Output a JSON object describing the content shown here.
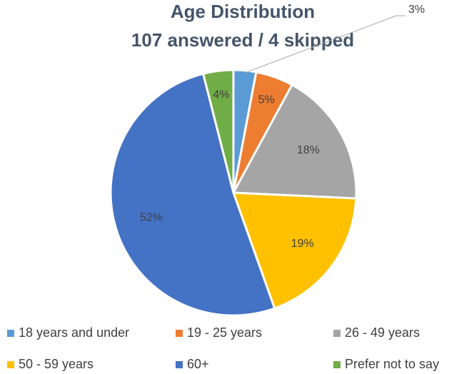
{
  "chart_data": {
    "type": "pie",
    "title": "Age Distribution",
    "subtitle": "107 answered / 4 skipped",
    "categories": [
      "18 years and under",
      "19 - 25 years",
      "26 - 49 years",
      "50 - 59 years",
      "60+",
      "Prefer not to say"
    ],
    "values": [
      3,
      5,
      18,
      19,
      52,
      4
    ],
    "value_labels": [
      "3%",
      "5%",
      "18%",
      "19%",
      "52%",
      "4%"
    ],
    "colors": [
      "#5b9bd5",
      "#ed7d31",
      "#a5a5a5",
      "#ffc000",
      "#4472c4",
      "#70ad47"
    ],
    "legend": "bottom"
  }
}
